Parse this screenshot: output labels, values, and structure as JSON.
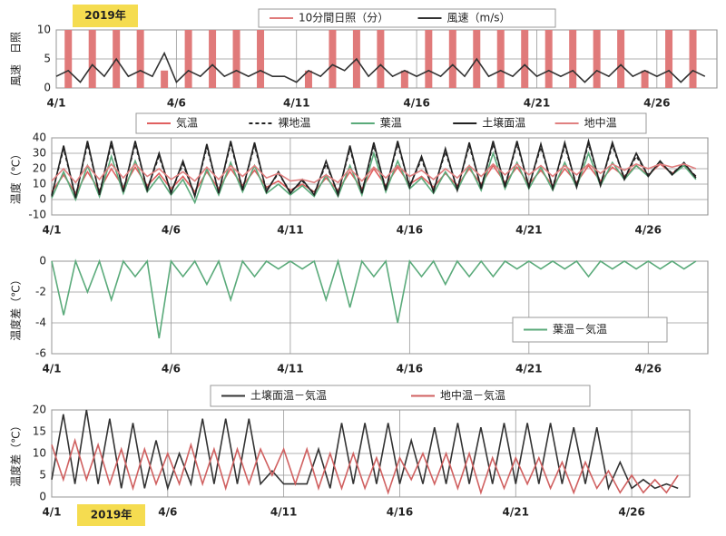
{
  "chart_data": [
    {
      "type": "line",
      "annotation": "2019年",
      "ylabel": "風速　日照",
      "ylim": [
        0,
        10
      ],
      "yticks": [
        0,
        5,
        10
      ],
      "xlim": [
        0,
        27.5
      ],
      "xticks": [
        {
          "value": 0,
          "label": "4/1"
        },
        {
          "value": 5,
          "label": "4/6"
        },
        {
          "value": 10,
          "label": "4/11"
        },
        {
          "value": 15,
          "label": "4/16"
        },
        {
          "value": 20,
          "label": "4/21"
        },
        {
          "value": 25,
          "label": "4/26"
        }
      ],
      "grid": true,
      "legend": "top",
      "x": [
        0,
        0.5,
        1,
        1.5,
        2,
        2.5,
        3,
        3.5,
        4,
        4.5,
        5,
        5.5,
        6,
        6.5,
        7,
        7.5,
        8,
        8.5,
        9,
        9.5,
        10,
        10.5,
        11,
        11.5,
        12,
        12.5,
        13,
        13.5,
        14,
        14.5,
        15,
        15.5,
        16,
        16.5,
        17,
        17.5,
        18,
        18.5,
        19,
        19.5,
        20,
        20.5,
        21,
        21.5,
        22,
        22.5,
        23,
        23.5,
        24,
        24.5,
        25,
        25.5,
        26,
        26.5,
        27
      ],
      "series": [
        {
          "name": "10分間日照（分）",
          "type": "bar",
          "color": "#e07a7a",
          "values": [
            0,
            10,
            0,
            10,
            0,
            10,
            0,
            10,
            0,
            3,
            0,
            10,
            0,
            10,
            0,
            10,
            0,
            10,
            0,
            0,
            0,
            3,
            0,
            10,
            0,
            10,
            0,
            10,
            0,
            3,
            0,
            10,
            0,
            10,
            0,
            10,
            0,
            10,
            0,
            10,
            0,
            10,
            0,
            10,
            0,
            10,
            0,
            10,
            0,
            3,
            0,
            10,
            0,
            10,
            0
          ]
        },
        {
          "name": "風速（m/s）",
          "type": "line",
          "color": "#333333",
          "values": [
            2,
            3,
            1,
            4,
            2,
            5,
            2,
            3,
            2,
            6,
            1,
            3,
            2,
            4,
            2,
            3,
            2,
            3,
            2,
            2,
            1,
            3,
            2,
            4,
            3,
            5,
            2,
            4,
            2,
            3,
            2,
            3,
            2,
            4,
            2,
            5,
            2,
            3,
            2,
            4,
            2,
            3,
            2,
            3,
            1,
            3,
            2,
            4,
            2,
            3,
            2,
            3,
            1,
            3,
            2
          ]
        }
      ]
    },
    {
      "type": "line",
      "ylabel": "温度（℃）",
      "ylim": [
        -10,
        40
      ],
      "yticks": [
        -10,
        0,
        10,
        20,
        30,
        40
      ],
      "xlim": [
        0,
        27.5
      ],
      "xticks": [
        {
          "value": 0,
          "label": "4/1"
        },
        {
          "value": 5,
          "label": "4/6"
        },
        {
          "value": 10,
          "label": "4/11"
        },
        {
          "value": 15,
          "label": "4/16"
        },
        {
          "value": 20,
          "label": "4/21"
        },
        {
          "value": 25,
          "label": "4/26"
        }
      ],
      "grid": true,
      "legend": "top",
      "x": [
        0,
        0.5,
        1,
        1.5,
        2,
        2.5,
        3,
        3.5,
        4,
        4.5,
        5,
        5.5,
        6,
        6.5,
        7,
        7.5,
        8,
        8.5,
        9,
        9.5,
        10,
        10.5,
        11,
        11.5,
        12,
        12.5,
        13,
        13.5,
        14,
        14.5,
        15,
        15.5,
        16,
        16.5,
        17,
        17.5,
        18,
        18.5,
        19,
        19.5,
        20,
        20.5,
        21,
        21.5,
        22,
        22.5,
        23,
        23.5,
        24,
        24.5,
        25,
        25.5,
        26,
        26.5,
        27
      ],
      "series": [
        {
          "name": "気温",
          "color": "#e06060",
          "values": [
            5,
            16,
            4,
            18,
            6,
            20,
            8,
            21,
            9,
            17,
            7,
            15,
            5,
            18,
            7,
            20,
            9,
            19,
            8,
            12,
            6,
            10,
            5,
            14,
            6,
            18,
            7,
            20,
            9,
            21,
            10,
            15,
            8,
            17,
            9,
            20,
            10,
            22,
            11,
            21,
            10,
            19,
            9,
            20,
            11,
            22,
            12,
            21,
            15,
            22,
            16,
            23,
            17,
            22,
            15
          ]
        },
        {
          "name": "裸地温",
          "color": "#222222",
          "dash": true,
          "values": [
            3,
            33,
            2,
            36,
            4,
            36,
            6,
            36,
            7,
            28,
            5,
            23,
            3,
            34,
            5,
            36,
            7,
            35,
            6,
            17,
            5,
            12,
            4,
            23,
            4,
            33,
            5,
            35,
            7,
            36,
            9,
            26,
            6,
            31,
            7,
            35,
            8,
            36,
            9,
            36,
            9,
            34,
            8,
            35,
            9,
            36,
            10,
            35,
            14,
            28,
            16,
            24,
            17,
            23,
            15
          ]
        },
        {
          "name": "葉温",
          "color": "#5aaa7a",
          "values": [
            1,
            18,
            0,
            22,
            2,
            28,
            4,
            25,
            5,
            15,
            3,
            13,
            -2,
            20,
            3,
            24,
            5,
            22,
            4,
            10,
            3,
            9,
            2,
            16,
            2,
            22,
            3,
            30,
            5,
            25,
            7,
            14,
            4,
            18,
            6,
            22,
            6,
            30,
            7,
            24,
            7,
            21,
            6,
            24,
            8,
            30,
            9,
            24,
            13,
            22,
            15,
            25,
            16,
            22,
            13
          ]
        },
        {
          "name": "土壌面温",
          "color": "#222222",
          "values": [
            2,
            35,
            1,
            38,
            3,
            38,
            5,
            38,
            6,
            30,
            4,
            25,
            2,
            36,
            4,
            38,
            6,
            37,
            5,
            18,
            4,
            13,
            3,
            25,
            3,
            35,
            4,
            37,
            6,
            38,
            8,
            28,
            5,
            33,
            6,
            37,
            7,
            38,
            8,
            38,
            8,
            36,
            7,
            37,
            8,
            38,
            9,
            37,
            13,
            30,
            15,
            25,
            16,
            24,
            14
          ]
        },
        {
          "name": "地中温",
          "color": "#e08080",
          "values": [
            12,
            20,
            11,
            22,
            13,
            23,
            14,
            23,
            15,
            20,
            13,
            18,
            12,
            21,
            13,
            22,
            15,
            22,
            14,
            17,
            12,
            13,
            11,
            16,
            11,
            20,
            12,
            21,
            14,
            22,
            15,
            19,
            13,
            20,
            14,
            22,
            15,
            23,
            16,
            23,
            16,
            22,
            15,
            22,
            16,
            23,
            17,
            23,
            19,
            23,
            20,
            23,
            21,
            23,
            20
          ]
        }
      ]
    },
    {
      "type": "line",
      "ylabel": "温度差（℃）",
      "ylim": [
        -6,
        0
      ],
      "yticks": [
        -6,
        -4,
        -2,
        0
      ],
      "xlim": [
        0,
        27.5
      ],
      "xticks": [
        {
          "value": 0,
          "label": "4/1"
        },
        {
          "value": 5,
          "label": "4/6"
        },
        {
          "value": 10,
          "label": "4/11"
        },
        {
          "value": 15,
          "label": "4/16"
        },
        {
          "value": 20,
          "label": "4/21"
        },
        {
          "value": 25,
          "label": "4/26"
        }
      ],
      "grid": true,
      "legend": "lower right",
      "x": [
        0,
        0.5,
        1,
        1.5,
        2,
        2.5,
        3,
        3.5,
        4,
        4.5,
        5,
        5.5,
        6,
        6.5,
        7,
        7.5,
        8,
        8.5,
        9,
        9.5,
        10,
        10.5,
        11,
        11.5,
        12,
        12.5,
        13,
        13.5,
        14,
        14.5,
        15,
        15.5,
        16,
        16.5,
        17,
        17.5,
        18,
        18.5,
        19,
        19.5,
        20,
        20.5,
        21,
        21.5,
        22,
        22.5,
        23,
        23.5,
        24,
        24.5,
        25,
        25.5,
        26,
        26.5,
        27
      ],
      "series": [
        {
          "name": "葉温－気温",
          "color": "#5aaa7a",
          "values": [
            0,
            -3.5,
            0,
            -2,
            0,
            -2.5,
            0,
            -1,
            0,
            -5,
            0,
            -1,
            0,
            -1.5,
            0,
            -2.5,
            0,
            -1,
            0,
            -0.5,
            0,
            -0.5,
            0,
            -2.5,
            0,
            -3,
            0,
            -1,
            0,
            -4,
            0,
            -1,
            0,
            -1.5,
            0,
            -1,
            0,
            -1,
            0,
            -0.5,
            0,
            -0.5,
            0,
            -0.5,
            0,
            -1,
            0,
            -0.5,
            0,
            -0.5,
            0,
            -0.5,
            0,
            -0.5,
            0
          ]
        }
      ]
    },
    {
      "type": "line",
      "annotation": "2019年",
      "ylabel": "温度差（℃）",
      "ylim": [
        0,
        20
      ],
      "yticks": [
        0,
        5,
        10,
        15,
        20
      ],
      "xlim": [
        0,
        27.5
      ],
      "xticks": [
        {
          "value": 0,
          "label": "4/1"
        },
        {
          "value": 5,
          "label": "4/6"
        },
        {
          "value": 10,
          "label": "4/11"
        },
        {
          "value": 15,
          "label": "4/16"
        },
        {
          "value": 20,
          "label": "4/21"
        },
        {
          "value": 25,
          "label": "4/26"
        }
      ],
      "grid": true,
      "legend": "top",
      "x": [
        0,
        0.5,
        1,
        1.5,
        2,
        2.5,
        3,
        3.5,
        4,
        4.5,
        5,
        5.5,
        6,
        6.5,
        7,
        7.5,
        8,
        8.5,
        9,
        9.5,
        10,
        10.5,
        11,
        11.5,
        12,
        12.5,
        13,
        13.5,
        14,
        14.5,
        15,
        15.5,
        16,
        16.5,
        17,
        17.5,
        18,
        18.5,
        19,
        19.5,
        20,
        20.5,
        21,
        21.5,
        22,
        22.5,
        23,
        23.5,
        24,
        24.5,
        25,
        25.5,
        26,
        26.5,
        27
      ],
      "series": [
        {
          "name": "土壌面温－気温",
          "color": "#333333",
          "values": [
            4,
            19,
            3,
            20,
            3,
            18,
            2,
            17,
            2,
            13,
            2,
            10,
            3,
            18,
            3,
            18,
            3,
            18,
            3,
            6,
            3,
            3,
            3,
            11,
            2,
            17,
            3,
            17,
            3,
            17,
            3,
            13,
            3,
            16,
            3,
            17,
            3,
            16,
            3,
            17,
            3,
            17,
            3,
            17,
            3,
            16,
            3,
            16,
            2,
            8,
            2,
            4,
            2,
            3,
            2
          ]
        },
        {
          "name": "地中温－気温",
          "color": "#d06060",
          "values": [
            12,
            4,
            13,
            4,
            12,
            3,
            11,
            2,
            11,
            3,
            10,
            3,
            12,
            3,
            11,
            2,
            11,
            3,
            11,
            5,
            11,
            3,
            11,
            2,
            10,
            2,
            10,
            2,
            9,
            1,
            9,
            4,
            10,
            3,
            10,
            2,
            10,
            1,
            9,
            2,
            9,
            3,
            9,
            2,
            8,
            1,
            8,
            2,
            6,
            1,
            5,
            1,
            4,
            1,
            5
          ]
        }
      ]
    }
  ]
}
